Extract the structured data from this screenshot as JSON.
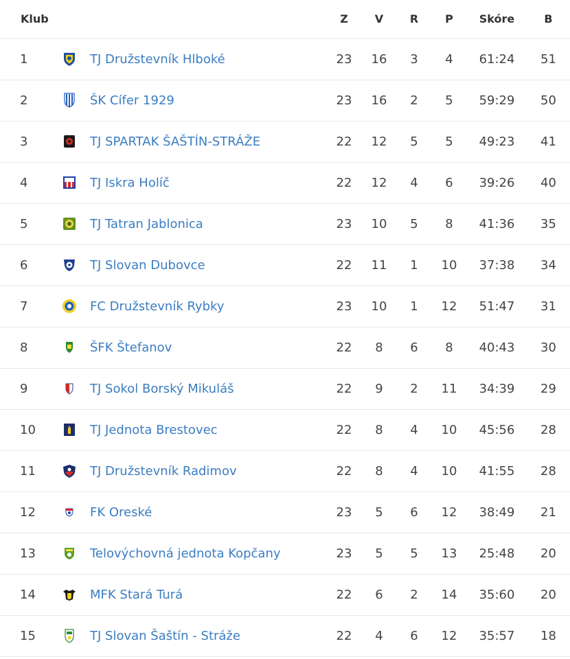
{
  "table": {
    "headers": {
      "club": "Klub",
      "played": "Z",
      "wins": "V",
      "draws": "R",
      "losses": "P",
      "score": "Skóre",
      "points": "B"
    },
    "rows": [
      {
        "pos": "1",
        "name": "TJ Družstevník Hlboké",
        "logo": "shield-blue-yellow-logo-icon",
        "played": "23",
        "wins": "16",
        "draws": "3",
        "losses": "4",
        "score": "61:24",
        "points": "51"
      },
      {
        "pos": "2",
        "name": "ŠK Cífer 1929",
        "logo": "striped-blue-white-logo-icon",
        "played": "23",
        "wins": "16",
        "draws": "2",
        "losses": "5",
        "score": "59:29",
        "points": "50"
      },
      {
        "pos": "3",
        "name": "TJ SPARTAK ŠAŠTÍN-STRÁŽE",
        "logo": "black-red-logo-icon",
        "played": "22",
        "wins": "12",
        "draws": "5",
        "losses": "5",
        "score": "49:23",
        "points": "41"
      },
      {
        "pos": "4",
        "name": "TJ Iskra Holíč",
        "logo": "red-white-blue-logo-icon",
        "played": "22",
        "wins": "12",
        "draws": "4",
        "losses": "6",
        "score": "39:26",
        "points": "40"
      },
      {
        "pos": "5",
        "name": "TJ Tatran Jablonica",
        "logo": "green-yellow-logo-icon",
        "played": "23",
        "wins": "10",
        "draws": "5",
        "losses": "8",
        "score": "41:36",
        "points": "35"
      },
      {
        "pos": "6",
        "name": "TJ Slovan Dubovce",
        "logo": "blue-ball-logo-icon",
        "played": "22",
        "wins": "11",
        "draws": "1",
        "losses": "10",
        "score": "37:38",
        "points": "34"
      },
      {
        "pos": "7",
        "name": "FC Družstevník Rybky",
        "logo": "round-yellow-blue-logo-icon",
        "played": "23",
        "wins": "10",
        "draws": "1",
        "losses": "12",
        "score": "51:47",
        "points": "31"
      },
      {
        "pos": "8",
        "name": "ŠFK Štefanov",
        "logo": "green-shield-logo-icon",
        "played": "22",
        "wins": "8",
        "draws": "6",
        "losses": "8",
        "score": "40:43",
        "points": "30"
      },
      {
        "pos": "9",
        "name": "TJ Sokol Borský Mikuláš",
        "logo": "red-blue-shield-logo-icon",
        "played": "22",
        "wins": "9",
        "draws": "2",
        "losses": "11",
        "score": "34:39",
        "points": "29"
      },
      {
        "pos": "10",
        "name": "TJ Jednota Brestovec",
        "logo": "navy-yellow-logo-icon",
        "played": "22",
        "wins": "8",
        "draws": "4",
        "losses": "10",
        "score": "45:56",
        "points": "28"
      },
      {
        "pos": "11",
        "name": "TJ Družstevník Radimov",
        "logo": "navy-red-shield-logo-icon",
        "played": "22",
        "wins": "8",
        "draws": "4",
        "losses": "10",
        "score": "41:55",
        "points": "28"
      },
      {
        "pos": "12",
        "name": "FK Oreské",
        "logo": "red-blue-small-logo-icon",
        "played": "23",
        "wins": "5",
        "draws": "6",
        "losses": "12",
        "score": "38:49",
        "points": "21"
      },
      {
        "pos": "13",
        "name": "Telovýchovná jednota Kopčany",
        "logo": "green-ball-shield-logo-icon",
        "played": "23",
        "wins": "5",
        "draws": "5",
        "losses": "13",
        "score": "25:48",
        "points": "20"
      },
      {
        "pos": "14",
        "name": "MFK Stará Turá",
        "logo": "black-yellow-crest-logo-icon",
        "played": "22",
        "wins": "6",
        "draws": "2",
        "losses": "14",
        "score": "35:60",
        "points": "20"
      },
      {
        "pos": "15",
        "name": "TJ Slovan Šaštín - Stráže",
        "logo": "white-green-shield-logo-icon",
        "played": "22",
        "wins": "4",
        "draws": "6",
        "losses": "12",
        "score": "35:57",
        "points": "18"
      }
    ]
  },
  "colors": {
    "link": "#3b7dc1",
    "text": "#444444",
    "header_text": "#333333",
    "row_divider": "#e6e6e6"
  }
}
